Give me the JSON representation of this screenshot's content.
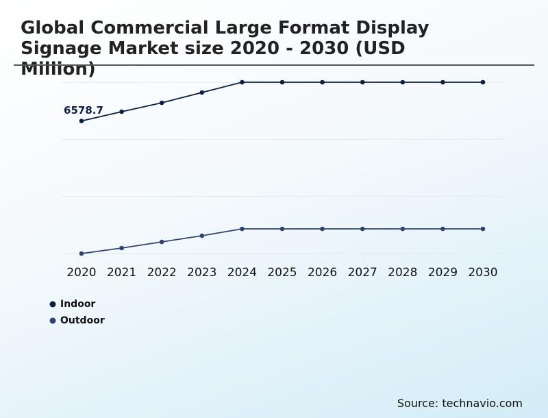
{
  "chart_data": {
    "type": "line",
    "title": "Global Commercial Large Format Display Signage Market size 2020 - 2030 (USD Million)",
    "source": "Source: technavio.com",
    "categories": [
      "2020",
      "2021",
      "2022",
      "2023",
      "2024",
      "2025",
      "2026",
      "2027",
      "2028",
      "2029",
      "2030"
    ],
    "series": [
      {
        "name": "Indoor",
        "color": "#0d1f45",
        "values": [
          6578.7,
          7038,
          7480,
          7990,
          8500,
          8500,
          8500,
          8500,
          8500,
          8500,
          8500
        ],
        "value_labels": [
          "6578.7",
          null,
          null,
          null,
          null,
          null,
          null,
          null,
          null,
          null,
          null
        ]
      },
      {
        "name": "Outdoor",
        "color": "#2e4374",
        "values": [
          0,
          272,
          578,
          884,
          1224,
          1224,
          1224,
          1224,
          1224,
          1224,
          1224
        ]
      }
    ],
    "ylim": [
      0,
      8500
    ],
    "yticks": [
      0,
      2833,
      5667,
      8500
    ],
    "grid": true
  }
}
